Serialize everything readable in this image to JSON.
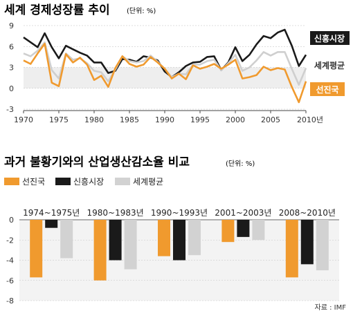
{
  "chart_data": [
    {
      "type": "line",
      "title": "세계 경제성장률 추이",
      "unit_note": "(단위: %)",
      "x": [
        1970,
        1971,
        1972,
        1973,
        1974,
        1975,
        1976,
        1977,
        1978,
        1979,
        1980,
        1981,
        1982,
        1983,
        1984,
        1985,
        1986,
        1987,
        1988,
        1989,
        1990,
        1991,
        1992,
        1993,
        1994,
        1995,
        1996,
        1997,
        1998,
        1999,
        2000,
        2001,
        2002,
        2003,
        2004,
        2005,
        2006,
        2007,
        2008,
        2009,
        2010
      ],
      "x_tick_labels": [
        "1970",
        "1975",
        "1980",
        "1985",
        "1990",
        "1995",
        "2000",
        "2005",
        "2010년"
      ],
      "y_ticks": [
        -3,
        0,
        3,
        6,
        9
      ],
      "ylim": [
        -3,
        9
      ],
      "series": [
        {
          "name": "신흥시장",
          "color": "#1a1a1a",
          "values": [
            7.3,
            6.6,
            5.9,
            7.9,
            5.9,
            4.3,
            6.1,
            5.6,
            5.1,
            4.7,
            3.7,
            3.7,
            2.2,
            2.5,
            4.2,
            4.1,
            3.8,
            4.6,
            4.4,
            4.0,
            2.4,
            1.6,
            2.3,
            3.2,
            3.7,
            3.8,
            4.5,
            4.6,
            2.6,
            3.7,
            5.9,
            3.9,
            4.8,
            6.3,
            7.5,
            7.2,
            8.0,
            8.4,
            6.1,
            3.2,
            4.8
          ],
          "label_box": "dark"
        },
        {
          "name": "세계평균",
          "color": "#cfcfcf",
          "values": [
            5.0,
            4.6,
            5.4,
            6.6,
            2.6,
            1.4,
            5.0,
            4.1,
            4.3,
            3.6,
            2.5,
            2.3,
            1.0,
            2.7,
            4.6,
            3.9,
            3.7,
            3.9,
            4.7,
            3.8,
            2.8,
            1.6,
            2.1,
            2.0,
            3.4,
            3.4,
            3.9,
            4.1,
            2.6,
            3.6,
            4.8,
            2.5,
            3.0,
            4.0,
            5.2,
            4.7,
            5.2,
            5.2,
            2.8,
            0.5,
            2.9
          ],
          "label_box": "none"
        },
        {
          "name": "선진국",
          "color": "#f09a2e",
          "values": [
            4.0,
            3.5,
            5.0,
            6.4,
            0.8,
            0.3,
            4.9,
            3.7,
            4.4,
            3.4,
            1.2,
            1.8,
            0.2,
            2.9,
            4.6,
            3.5,
            3.1,
            3.4,
            4.5,
            3.7,
            2.8,
            1.4,
            2.1,
            1.3,
            3.3,
            2.8,
            3.1,
            3.5,
            2.8,
            3.4,
            4.1,
            1.4,
            1.6,
            1.9,
            3.1,
            2.6,
            2.9,
            2.7,
            0.2,
            -2.0,
            1.0
          ],
          "label_box": "orange"
        }
      ]
    },
    {
      "type": "bar",
      "title": "과거 불황기와의 산업생산감소율 비교",
      "unit_note": "(단위: %)",
      "categories": [
        "1974~1975년",
        "1980~1983년",
        "1990~1993년",
        "2001~2003년",
        "2008~2010년"
      ],
      "y_ticks": [
        0,
        -2,
        -4,
        -6,
        -8
      ],
      "ylim": [
        -8,
        0
      ],
      "series": [
        {
          "name": "선진국",
          "color": "#f09a2e",
          "values": [
            -5.7,
            -6.0,
            -3.6,
            -2.2,
            -5.7
          ]
        },
        {
          "name": "신흥시장",
          "color": "#1a1a1a",
          "values": [
            -0.8,
            -4.0,
            -4.0,
            -1.7,
            -4.4
          ]
        },
        {
          "name": "세계평균",
          "color": "#d2d2d2",
          "values": [
            -3.8,
            -4.9,
            -3.5,
            -2.0,
            -5.0
          ]
        }
      ],
      "source": "자료 : IMF"
    }
  ]
}
